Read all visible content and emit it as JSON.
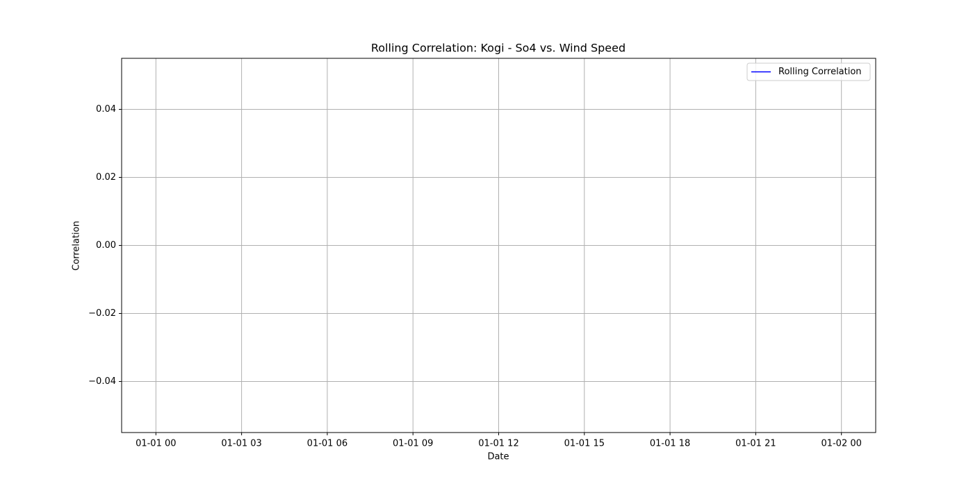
{
  "chart_data": {
    "type": "line",
    "title": "Rolling Correlation: Kogi - So4 vs. Wind Speed",
    "xlabel": "Date",
    "ylabel": "Correlation",
    "x": [],
    "series": [
      {
        "name": "Rolling Correlation",
        "color": "#0000ff",
        "values": []
      }
    ],
    "xlim": [
      -1.2,
      25.2
    ],
    "xticks": [
      {
        "value": 0,
        "label": "01-01 00"
      },
      {
        "value": 3,
        "label": "01-01 03"
      },
      {
        "value": 6,
        "label": "01-01 06"
      },
      {
        "value": 9,
        "label": "01-01 09"
      },
      {
        "value": 12,
        "label": "01-01 12"
      },
      {
        "value": 15,
        "label": "01-01 15"
      },
      {
        "value": 18,
        "label": "01-01 18"
      },
      {
        "value": 21,
        "label": "01-01 21"
      },
      {
        "value": 24,
        "label": "01-02 00"
      }
    ],
    "ylim": [
      -0.055,
      0.055
    ],
    "yticks": [
      {
        "value": -0.04,
        "label": "−0.04"
      },
      {
        "value": -0.02,
        "label": "−0.02"
      },
      {
        "value": 0,
        "label": "0.00"
      },
      0.02,
      0.04
    ],
    "grid": true,
    "legend": "upper right"
  }
}
